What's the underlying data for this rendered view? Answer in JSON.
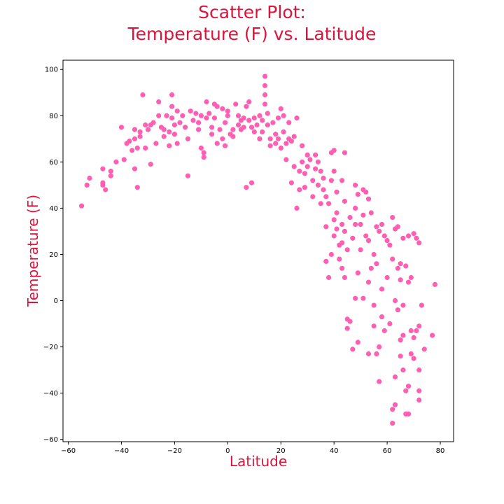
{
  "chart_data": {
    "type": "scatter",
    "title_line1": "Scatter Plot:",
    "title_line2": "Temperature (F) vs. Latitude",
    "xlabel": "Latitude",
    "ylabel": "Temperature (F)",
    "xlim": [
      -62,
      85
    ],
    "ylim": [
      -61,
      104
    ],
    "xticks": [
      -60,
      -40,
      -20,
      0,
      20,
      40,
      60,
      80
    ],
    "yticks": [
      -60,
      -40,
      -20,
      0,
      20,
      40,
      60,
      80,
      100
    ],
    "marker_color": "#ff5fb3",
    "title_color": "#dc143c",
    "grid": false,
    "points": [
      [
        -55,
        41
      ],
      [
        -52,
        53
      ],
      [
        -53,
        50
      ],
      [
        -47,
        57
      ],
      [
        -47,
        51
      ],
      [
        -47,
        50
      ],
      [
        -46,
        48
      ],
      [
        -44,
        54
      ],
      [
        -44,
        56
      ],
      [
        -42,
        60
      ],
      [
        -40,
        75
      ],
      [
        -39,
        61
      ],
      [
        -38,
        68
      ],
      [
        -37,
        69
      ],
      [
        -36,
        65
      ],
      [
        -35,
        70
      ],
      [
        -35,
        74
      ],
      [
        -35,
        57
      ],
      [
        -34,
        49
      ],
      [
        -34,
        66
      ],
      [
        -33,
        73
      ],
      [
        -33,
        71
      ],
      [
        -32,
        89
      ],
      [
        -31,
        76
      ],
      [
        -31,
        66
      ],
      [
        -30,
        74
      ],
      [
        -29,
        76
      ],
      [
        -29,
        59
      ],
      [
        -28,
        77
      ],
      [
        -27,
        68
      ],
      [
        -26,
        86
      ],
      [
        -26,
        80
      ],
      [
        -25,
        75
      ],
      [
        -24,
        74
      ],
      [
        -24,
        71
      ],
      [
        -23,
        80
      ],
      [
        -22,
        73
      ],
      [
        -22,
        67
      ],
      [
        -21,
        89
      ],
      [
        -21,
        84
      ],
      [
        -21,
        79
      ],
      [
        -20,
        76
      ],
      [
        -20,
        72
      ],
      [
        -19,
        82
      ],
      [
        -19,
        68
      ],
      [
        -18,
        77
      ],
      [
        -17,
        80
      ],
      [
        -16,
        75
      ],
      [
        -15,
        70
      ],
      [
        -15,
        54
      ],
      [
        -14,
        82
      ],
      [
        -13,
        78
      ],
      [
        -12,
        81
      ],
      [
        -11,
        77
      ],
      [
        -11,
        74
      ],
      [
        -10,
        80
      ],
      [
        -10,
        66
      ],
      [
        -9,
        64
      ],
      [
        -9,
        62
      ],
      [
        -8,
        86
      ],
      [
        -8,
        79
      ],
      [
        -7,
        81
      ],
      [
        -6,
        75
      ],
      [
        -6,
        72
      ],
      [
        -5,
        85
      ],
      [
        -5,
        79
      ],
      [
        -4,
        68
      ],
      [
        -4,
        84
      ],
      [
        -3,
        74
      ],
      [
        -2,
        83
      ],
      [
        -2,
        70
      ],
      [
        -1,
        67
      ],
      [
        -1,
        77
      ],
      [
        0,
        80
      ],
      [
        0,
        82
      ],
      [
        1,
        72
      ],
      [
        2,
        74
      ],
      [
        2,
        71
      ],
      [
        3,
        85
      ],
      [
        4,
        80
      ],
      [
        4,
        76
      ],
      [
        5,
        78
      ],
      [
        5,
        74
      ],
      [
        6,
        79
      ],
      [
        6,
        75
      ],
      [
        7,
        84
      ],
      [
        7,
        49
      ],
      [
        8,
        86
      ],
      [
        8,
        78
      ],
      [
        9,
        75
      ],
      [
        9,
        51
      ],
      [
        10,
        79
      ],
      [
        10,
        73
      ],
      [
        11,
        76
      ],
      [
        12,
        80
      ],
      [
        12,
        70
      ],
      [
        13,
        78
      ],
      [
        13,
        73
      ],
      [
        14,
        97
      ],
      [
        14,
        93
      ],
      [
        14,
        89
      ],
      [
        14,
        85
      ],
      [
        15,
        81
      ],
      [
        15,
        76
      ],
      [
        16,
        70
      ],
      [
        16,
        67
      ],
      [
        17,
        77
      ],
      [
        18,
        72
      ],
      [
        18,
        68
      ],
      [
        19,
        79
      ],
      [
        19,
        70
      ],
      [
        20,
        83
      ],
      [
        20,
        66
      ],
      [
        21,
        80
      ],
      [
        21,
        73
      ],
      [
        22,
        68
      ],
      [
        22,
        61
      ],
      [
        23,
        77
      ],
      [
        23,
        70
      ],
      [
        24,
        69
      ],
      [
        24,
        51
      ],
      [
        25,
        71
      ],
      [
        25,
        58
      ],
      [
        26,
        79
      ],
      [
        26,
        40
      ],
      [
        27,
        56
      ],
      [
        27,
        48
      ],
      [
        28,
        67
      ],
      [
        28,
        60
      ],
      [
        29,
        55
      ],
      [
        29,
        49
      ],
      [
        30,
        63
      ],
      [
        30,
        58
      ],
      [
        31,
        61
      ],
      [
        32,
        52
      ],
      [
        32,
        45
      ],
      [
        33,
        63
      ],
      [
        33,
        57
      ],
      [
        34,
        60
      ],
      [
        34,
        50
      ],
      [
        35,
        56
      ],
      [
        35,
        42
      ],
      [
        36,
        53
      ],
      [
        36,
        48
      ],
      [
        37,
        45
      ],
      [
        37,
        32
      ],
      [
        37,
        17
      ],
      [
        38,
        10
      ],
      [
        38,
        42
      ],
      [
        39,
        64
      ],
      [
        39,
        52
      ],
      [
        39,
        20
      ],
      [
        40,
        65
      ],
      [
        40,
        56
      ],
      [
        40,
        35
      ],
      [
        40,
        28
      ],
      [
        41,
        47
      ],
      [
        41,
        38
      ],
      [
        41,
        31
      ],
      [
        42,
        24
      ],
      [
        42,
        18
      ],
      [
        43,
        52
      ],
      [
        43,
        33
      ],
      [
        43,
        25
      ],
      [
        43,
        14
      ],
      [
        44,
        64
      ],
      [
        44,
        43
      ],
      [
        44,
        30
      ],
      [
        44,
        10
      ],
      [
        45,
        -8
      ],
      [
        45,
        -12
      ],
      [
        45,
        22
      ],
      [
        46,
        36
      ],
      [
        46,
        -9
      ],
      [
        47,
        27
      ],
      [
        47,
        -21
      ],
      [
        48,
        50
      ],
      [
        48,
        40
      ],
      [
        48,
        33
      ],
      [
        48,
        1
      ],
      [
        49,
        46
      ],
      [
        49,
        12
      ],
      [
        49,
        -18
      ],
      [
        50,
        33
      ],
      [
        50,
        22
      ],
      [
        51,
        48
      ],
      [
        51,
        37
      ],
      [
        51,
        1
      ],
      [
        52,
        47
      ],
      [
        52,
        28
      ],
      [
        53,
        44
      ],
      [
        53,
        26
      ],
      [
        53,
        8
      ],
      [
        53,
        -23
      ],
      [
        54,
        38
      ],
      [
        54,
        14
      ],
      [
        55,
        20
      ],
      [
        55,
        -11
      ],
      [
        55,
        -2
      ],
      [
        56,
        32
      ],
      [
        56,
        16
      ],
      [
        56,
        -23
      ],
      [
        57,
        30
      ],
      [
        57,
        -20
      ],
      [
        57,
        -35
      ],
      [
        58,
        33
      ],
      [
        58,
        5
      ],
      [
        58,
        -7
      ],
      [
        59,
        28
      ],
      [
        59,
        -13
      ],
      [
        60,
        26
      ],
      [
        60,
        10
      ],
      [
        61,
        24
      ],
      [
        61,
        -10
      ],
      [
        62,
        36
      ],
      [
        62,
        18
      ],
      [
        62,
        -47
      ],
      [
        62,
        -53
      ],
      [
        63,
        31
      ],
      [
        63,
        0
      ],
      [
        63,
        -45
      ],
      [
        63,
        -33
      ],
      [
        64,
        32
      ],
      [
        64,
        14
      ],
      [
        64,
        -4
      ],
      [
        65,
        16
      ],
      [
        65,
        9
      ],
      [
        65,
        -17
      ],
      [
        65,
        -24
      ],
      [
        66,
        27
      ],
      [
        66,
        -2
      ],
      [
        66,
        -15
      ],
      [
        66,
        -30
      ],
      [
        67,
        15
      ],
      [
        67,
        -39
      ],
      [
        67,
        -49
      ],
      [
        68,
        28
      ],
      [
        68,
        8
      ],
      [
        68,
        -37
      ],
      [
        68,
        -49
      ],
      [
        69,
        -13
      ],
      [
        69,
        10
      ],
      [
        69,
        -23
      ],
      [
        70,
        29
      ],
      [
        70,
        -16
      ],
      [
        70,
        -25
      ],
      [
        71,
        27
      ],
      [
        71,
        -13
      ],
      [
        72,
        25
      ],
      [
        72,
        -11
      ],
      [
        72,
        -30
      ],
      [
        72,
        -39
      ],
      [
        72,
        -43
      ],
      [
        73,
        -2
      ],
      [
        74,
        -21
      ],
      [
        78,
        7
      ],
      [
        77,
        -15
      ]
    ]
  }
}
